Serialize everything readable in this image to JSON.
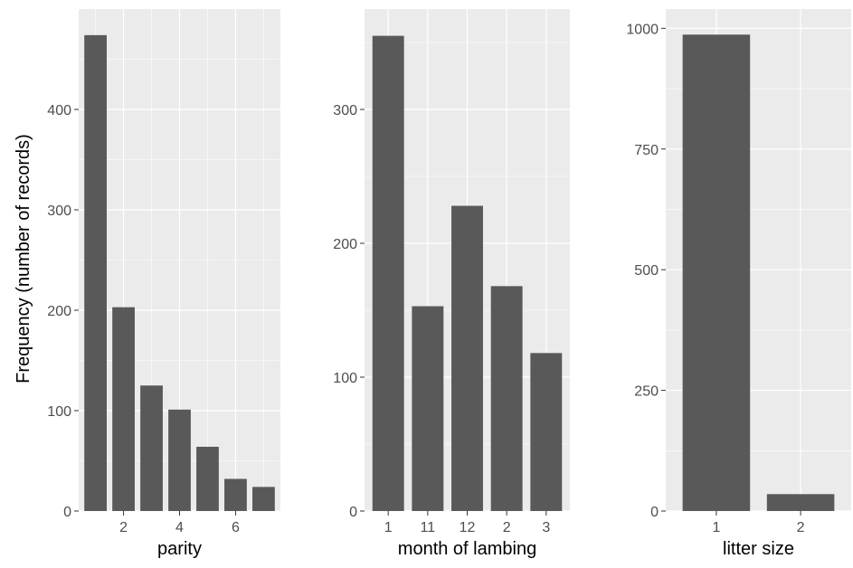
{
  "figure": {
    "ylabel": "Frequency (number of records)"
  },
  "colors": {
    "panel_background": "#ebebeb",
    "grid": "#ffffff",
    "bar_fill": "#595959",
    "tick_label": "#4d4d4d"
  },
  "chart_data": [
    {
      "type": "bar",
      "xlabel": "parity",
      "ylabel": "Frequency (number of records)",
      "x": [
        1,
        2,
        3,
        4,
        5,
        6,
        7
      ],
      "values": [
        474,
        203,
        125,
        101,
        64,
        32,
        24
      ],
      "xlim": [
        0.4,
        7.6
      ],
      "ylim": [
        0,
        500
      ],
      "x_ticks": [
        2,
        4,
        6
      ],
      "x_tick_labels": [
        "2",
        "4",
        "6"
      ],
      "y_ticks": [
        0,
        100,
        200,
        300,
        400
      ],
      "y_tick_labels": [
        "0",
        "100",
        "200",
        "300",
        "400"
      ],
      "grid": true
    },
    {
      "type": "bar",
      "xlabel": "month of lambing",
      "categories": [
        "1",
        "11",
        "12",
        "2",
        "3"
      ],
      "values": [
        355,
        153,
        228,
        168,
        118
      ],
      "ylim": [
        0,
        375
      ],
      "y_ticks": [
        0,
        100,
        200,
        300
      ],
      "y_tick_labels": [
        "0",
        "100",
        "200",
        "300"
      ],
      "grid": true
    },
    {
      "type": "bar",
      "xlabel": "litter size",
      "categories": [
        "1",
        "2"
      ],
      "values": [
        987,
        35
      ],
      "ylim": [
        0,
        1040
      ],
      "y_ticks": [
        0,
        250,
        500,
        750,
        1000
      ],
      "y_tick_labels": [
        "0",
        "250",
        "500",
        "750",
        "1000"
      ],
      "grid": true
    }
  ]
}
